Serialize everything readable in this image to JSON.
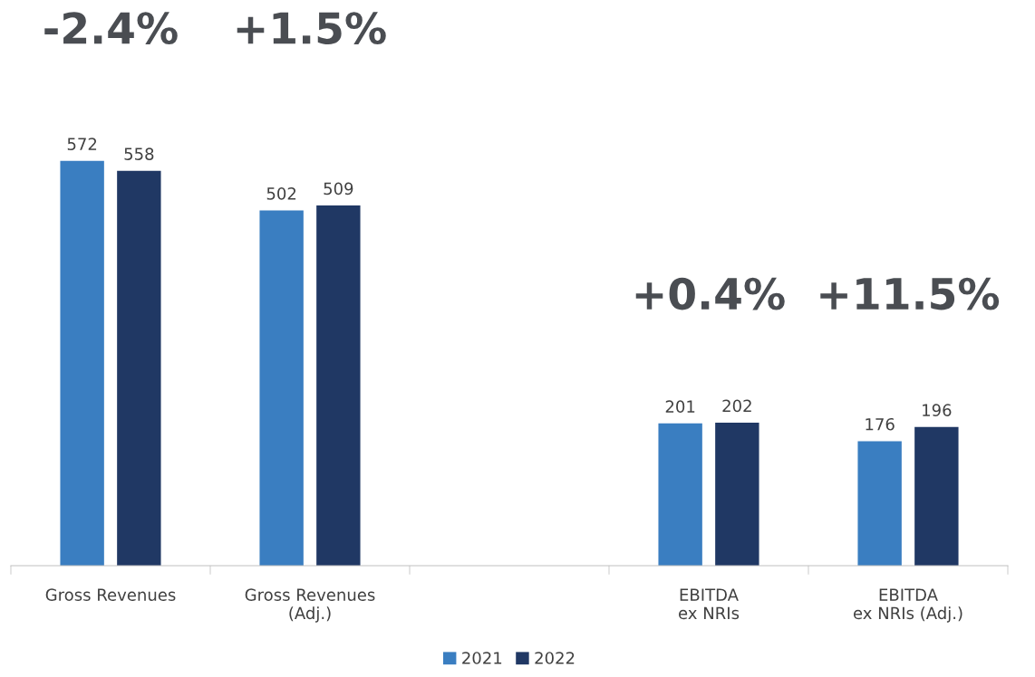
{
  "chart_data": {
    "type": "bar",
    "categories": [
      "Gross Revenues",
      "Gross Revenues\n(Adj.)",
      null,
      "EBITDA\nex NRIs",
      "EBITDA\nex NRIs (Adj.)"
    ],
    "series": [
      {
        "name": "2021",
        "color": "#3a7ec1",
        "values": [
          572,
          502,
          null,
          201,
          176
        ]
      },
      {
        "name": "2022",
        "color": "#203864",
        "values": [
          558,
          509,
          null,
          202,
          196
        ]
      }
    ],
    "data_labels": true,
    "annotations": [
      "-2.4%",
      "+1.5%",
      "+0.4%",
      "+11.5%"
    ],
    "legend": "bottom",
    "grid": false
  }
}
